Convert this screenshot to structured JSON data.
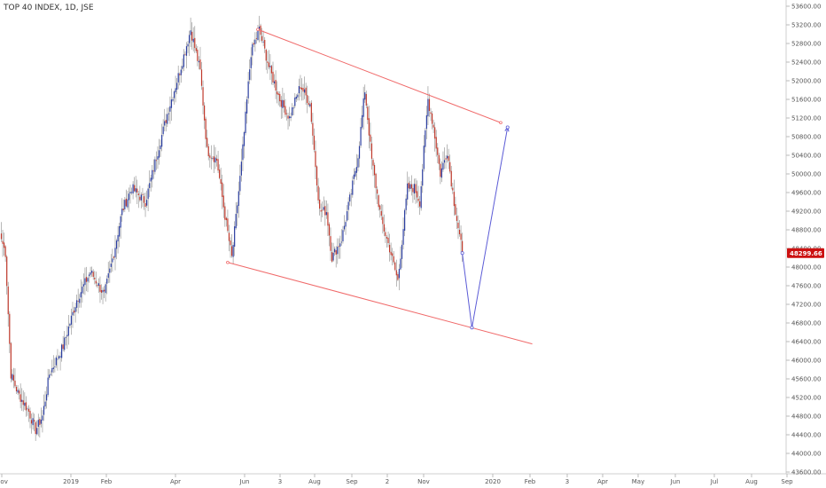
{
  "header": {
    "title": "TOP 40 INDEX, 1D, JSE"
  },
  "colors": {
    "up": "#2b3ea0",
    "down": "#c0392b",
    "wick": "#9a9a9a",
    "channel": "#f06a6a",
    "projection": "#5b5bd6",
    "price_tag": "#cc1111"
  },
  "chart_data": {
    "type": "candlestick",
    "title": "TOP 40 INDEX, 1D, JSE",
    "ylim": [
      44000,
      53600
    ],
    "y_ticks": [
      "53600.00",
      "53200.00",
      "52800.00",
      "52400.00",
      "52000.00",
      "51600.00",
      "51200.00",
      "50800.00",
      "50400.00",
      "50000.00",
      "49600.00",
      "49200.00",
      "48800.00",
      "48400.00",
      "48000.00",
      "47600.00",
      "47200.00",
      "46800.00",
      "46400.00",
      "46000.00",
      "45600.00",
      "45200.00",
      "44800.00",
      "44400.00",
      "44000.00",
      "43600.00"
    ],
    "x_ticks": [
      "Nov",
      "2019",
      "Feb",
      "Apr",
      "Jun",
      "3",
      "Aug",
      "Sep",
      "2",
      "Nov",
      "2020",
      "Feb",
      "3",
      "Apr",
      "May",
      "Jun",
      "Jul",
      "Aug",
      "Sep"
    ],
    "last_price": "48299.66",
    "anchors": [
      {
        "day": 0,
        "close": 48600
      },
      {
        "day": 3,
        "close": 48300
      },
      {
        "day": 7,
        "close": 45700
      },
      {
        "day": 12,
        "close": 45300
      },
      {
        "day": 20,
        "close": 44900
      },
      {
        "day": 25,
        "close": 44500
      },
      {
        "day": 30,
        "close": 44800
      },
      {
        "day": 35,
        "close": 45700
      },
      {
        "day": 40,
        "close": 46000
      },
      {
        "day": 45,
        "close": 46300
      },
      {
        "day": 55,
        "close": 47300
      },
      {
        "day": 65,
        "close": 47900
      },
      {
        "day": 75,
        "close": 47400
      },
      {
        "day": 82,
        "close": 48300
      },
      {
        "day": 88,
        "close": 49200
      },
      {
        "day": 95,
        "close": 49700
      },
      {
        "day": 105,
        "close": 49400
      },
      {
        "day": 115,
        "close": 50600
      },
      {
        "day": 122,
        "close": 51400
      },
      {
        "day": 130,
        "close": 52200
      },
      {
        "day": 138,
        "close": 53100
      },
      {
        "day": 145,
        "close": 52200
      },
      {
        "day": 150,
        "close": 50500
      },
      {
        "day": 157,
        "close": 50300
      },
      {
        "day": 163,
        "close": 49100
      },
      {
        "day": 168,
        "close": 48200
      },
      {
        "day": 175,
        "close": 50200
      },
      {
        "day": 182,
        "close": 52600
      },
      {
        "day": 188,
        "close": 53100
      },
      {
        "day": 195,
        "close": 52300
      },
      {
        "day": 203,
        "close": 51600
      },
      {
        "day": 210,
        "close": 51200
      },
      {
        "day": 218,
        "close": 51900
      },
      {
        "day": 225,
        "close": 51500
      },
      {
        "day": 232,
        "close": 49200
      },
      {
        "day": 237,
        "close": 49200
      },
      {
        "day": 241,
        "close": 48200
      },
      {
        "day": 248,
        "close": 48600
      },
      {
        "day": 255,
        "close": 49600
      },
      {
        "day": 260,
        "close": 50400
      },
      {
        "day": 265,
        "close": 51800
      },
      {
        "day": 270,
        "close": 50300
      },
      {
        "day": 277,
        "close": 49000
      },
      {
        "day": 283,
        "close": 48400
      },
      {
        "day": 289,
        "close": 47700
      },
      {
        "day": 296,
        "close": 49700
      },
      {
        "day": 301,
        "close": 49700
      },
      {
        "day": 305,
        "close": 49400
      },
      {
        "day": 311,
        "close": 51600
      },
      {
        "day": 315,
        "close": 51000
      },
      {
        "day": 320,
        "close": 50000
      },
      {
        "day": 325,
        "close": 50500
      },
      {
        "day": 330,
        "close": 49400
      },
      {
        "day": 336,
        "close": 48300
      }
    ],
    "channel": {
      "upper": [
        {
          "day": 187,
          "price": 53100
        },
        {
          "day": 364,
          "price": 51100
        }
      ],
      "lower": [
        {
          "day": 165,
          "price": 48100
        },
        {
          "day": 387,
          "price": 46350
        }
      ]
    },
    "projection": [
      {
        "day": 336,
        "price": 48300
      },
      {
        "day": 343,
        "price": 46700
      },
      {
        "day": 369,
        "price": 51000
      }
    ]
  }
}
